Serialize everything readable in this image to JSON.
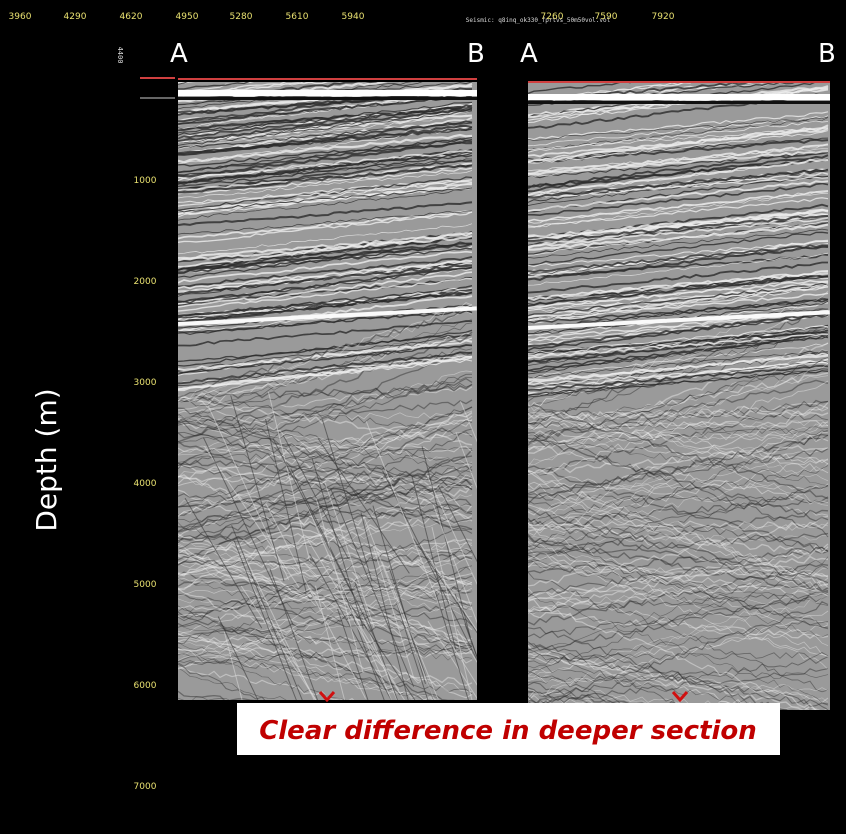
{
  "header": {
    "file_label": "Seismic: q8inq_ok330_fprtvs_50m50vol.vol",
    "inline_label": "4400"
  },
  "top_axis": {
    "labels": [
      "3960",
      "4290",
      "4620",
      "4950",
      "5280",
      "5610",
      "5940",
      "7260",
      "7590",
      "7920"
    ]
  },
  "panels": [
    {
      "left_label": "A",
      "right_label": "B"
    },
    {
      "left_label": "A",
      "right_label": "B"
    }
  ],
  "depth_axis": {
    "title": "Depth (m)",
    "ticks": [
      1000,
      2000,
      3000,
      4000,
      5000,
      6000,
      7000
    ]
  },
  "annotation": {
    "text": "Clear difference in deeper section"
  }
}
